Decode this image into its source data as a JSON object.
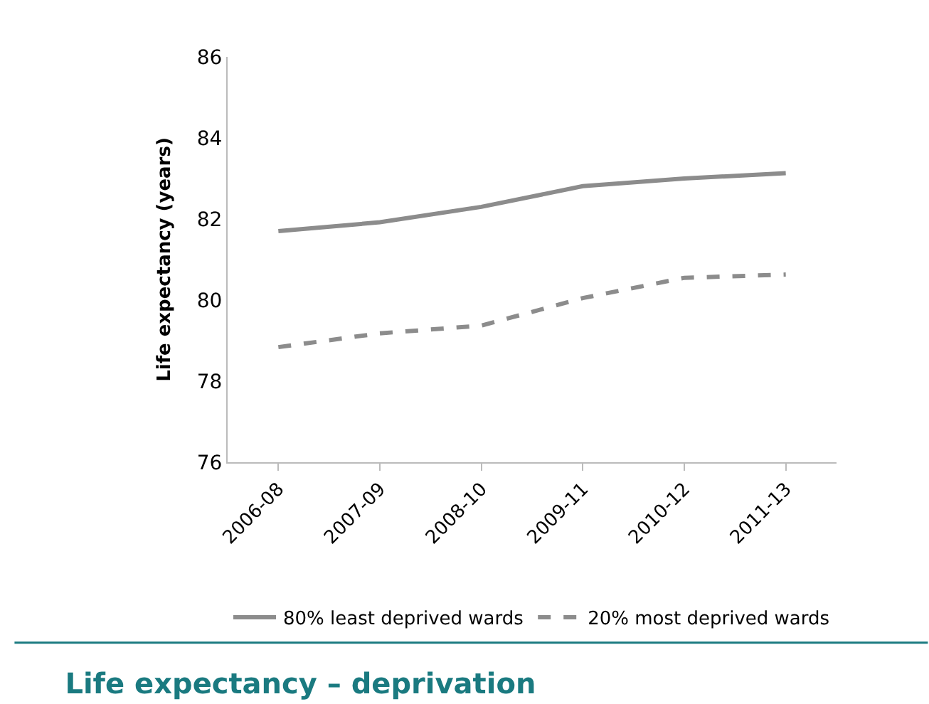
{
  "chart_data": {
    "type": "line",
    "title": "Life expectancy – deprivation",
    "ylabel": "Life expectancy (years)",
    "categories": [
      "2006-08",
      "2007-09",
      "2008-10",
      "2009-11",
      "2010-12",
      "2011-13"
    ],
    "series": [
      {
        "name": "80% least deprived wards",
        "color": "#8c8c8c",
        "line_style": "solid",
        "values": [
          81.7,
          81.92,
          82.3,
          82.81,
          83.0,
          83.13
        ]
      },
      {
        "name": "20% most deprived wards",
        "color": "#8c8c8c",
        "line_style": "dashed",
        "values": [
          78.84,
          79.18,
          79.37,
          80.05,
          80.55,
          80.63
        ]
      }
    ],
    "ylim": [
      76,
      86
    ],
    "yticks": [
      76,
      78,
      80,
      82,
      84,
      86
    ],
    "grid": false,
    "legend": "bottom",
    "marker": "none"
  }
}
